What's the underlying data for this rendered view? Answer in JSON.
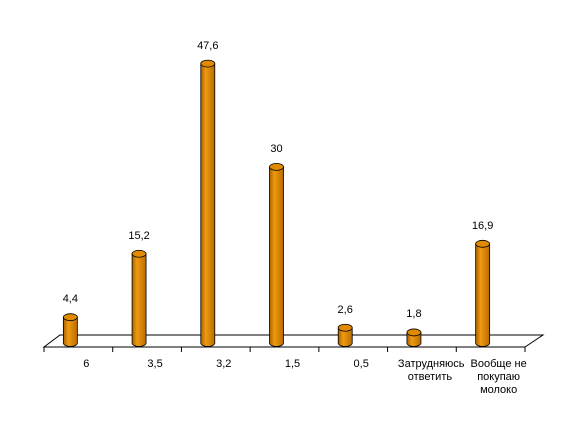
{
  "chart_data": {
    "type": "bar",
    "categories": [
      "6",
      "3,5",
      "3,2",
      "1,5",
      "0,5",
      "Затрудняюсь ответить",
      "Вообще не покупаю молоко"
    ],
    "values": [
      4.4,
      15.2,
      47.6,
      30,
      2.6,
      1.8,
      16.9
    ],
    "value_labels": [
      "4,4",
      "15,2",
      "47,6",
      "30",
      "2,6",
      "1,8",
      "16,9"
    ],
    "color": "#e08a00"
  }
}
